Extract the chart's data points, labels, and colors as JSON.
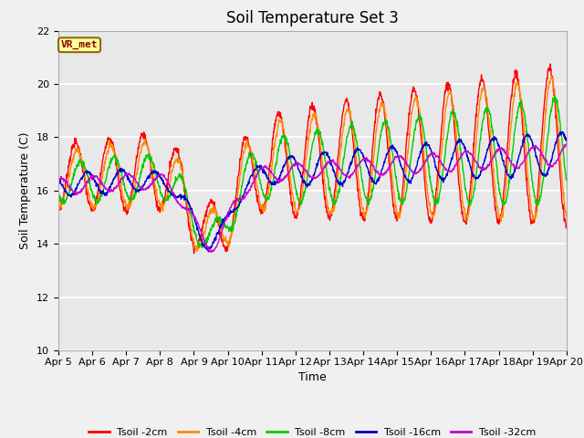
{
  "title": "Soil Temperature Set 3",
  "xlabel": "Time",
  "ylabel": "Soil Temperature (C)",
  "ylim": [
    10,
    22
  ],
  "yticks": [
    10,
    12,
    14,
    16,
    18,
    20,
    22
  ],
  "x_labels": [
    "Apr 5",
    "Apr 6",
    "Apr 7",
    "Apr 8",
    "Apr 9",
    "Apr 10",
    "Apr 11",
    "Apr 12",
    "Apr 13",
    "Apr 14",
    "Apr 15",
    "Apr 16",
    "Apr 17",
    "Apr 18",
    "Apr 19",
    "Apr 20"
  ],
  "colors": {
    "Tsoil -2cm": "#ff0000",
    "Tsoil -4cm": "#ff8c00",
    "Tsoil -8cm": "#00cc00",
    "Tsoil -16cm": "#0000cc",
    "Tsoil -32cm": "#cc00cc"
  },
  "annotation_text": "VR_met",
  "annotation_color": "#8b0000",
  "annotation_bg": "#ffff99",
  "annotation_border": "#8b6914",
  "fig_bg": "#f0f0f0",
  "plot_bg": "#e8e8e8",
  "grid_color": "#ffffff",
  "title_fontsize": 12,
  "label_fontsize": 9,
  "tick_fontsize": 8
}
